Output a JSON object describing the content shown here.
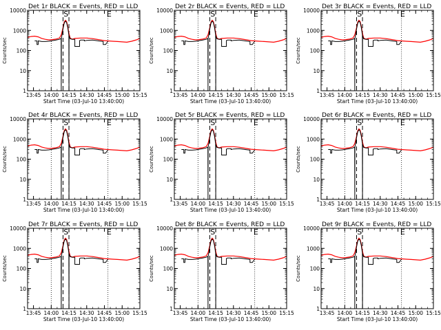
{
  "figure": {
    "background": "#ffffff",
    "axis_color": "#000000",
    "events_color": "#000000",
    "lld_color": "#ff0000"
  },
  "chart_data": {
    "type": "line",
    "yscale": "log",
    "ylim": [
      1,
      10000
    ],
    "y_ticks": [
      1,
      10,
      100,
      1000,
      10000
    ],
    "y_tick_labels": [
      "1",
      "10",
      "100",
      "1000",
      "10000"
    ],
    "ylabel": "Counts/sec",
    "xlabel": "Start Time (03-Jul-10 13:40:00)",
    "xlim_minutes": [
      0,
      95
    ],
    "x_ticks_minutes": [
      5,
      20,
      35,
      50,
      65,
      80,
      95
    ],
    "x_tick_labels": [
      "13:45",
      "14:00",
      "14:15",
      "14:30",
      "14:45",
      "15:00",
      "15:15"
    ],
    "dotted_vlines_minutes": [
      20,
      68
    ],
    "dashed_vlines_minutes": [
      30,
      35
    ],
    "markers": [
      {
        "text": "S",
        "x_minutes": 32.5
      },
      {
        "text": "E",
        "x_minutes": 69
      }
    ],
    "panel_titles": [
      "Det 1r BLACK = Events, RED = LLD",
      "Det 2r BLACK = Events, RED = LLD",
      "Det 3r BLACK = Events, RED = LLD",
      "Det 4r BLACK = Events, RED = LLD",
      "Det 5r BLACK = Events, RED = LLD",
      "Det 6r BLACK = Events, RED = LLD",
      "Det 7r BLACK = Events, RED = LLD",
      "Det 8r BLACK = Events, RED = LLD",
      "Det 9r BLACK = Events, RED = LLD"
    ],
    "series": [
      {
        "name": "LLD",
        "color": "#ff0000",
        "x_minutes": [
          0,
          3,
          6,
          9,
          12,
          15,
          18,
          21,
          24,
          27,
          28.5,
          30,
          31,
          32,
          33,
          34,
          35,
          36,
          37,
          38,
          40,
          45,
          50,
          55,
          60,
          65,
          68,
          72,
          76,
          80,
          84,
          88,
          92,
          95
        ],
        "values": [
          450,
          500,
          520,
          480,
          400,
          360,
          340,
          350,
          370,
          420,
          600,
          1400,
          2600,
          3200,
          2800,
          1600,
          700,
          420,
          380,
          370,
          400,
          420,
          420,
          390,
          350,
          310,
          300,
          290,
          280,
          270,
          260,
          290,
          340,
          400
        ]
      },
      {
        "name": "Events",
        "color": "#000000",
        "x_minutes": [
          6,
          8,
          8.01,
          9,
          9.01,
          12,
          15,
          18,
          21,
          24,
          27,
          28.4,
          28.5,
          28.6,
          30,
          31,
          32,
          33,
          34,
          34.9,
          35,
          35.1,
          36,
          38,
          40,
          40.01,
          44,
          44.01,
          45,
          48,
          48.01,
          50,
          55,
          60,
          64,
          64.01,
          66,
          68
        ],
        "values": [
          300,
          300,
          200,
          200,
          300,
          280,
          280,
          290,
          310,
          330,
          360,
          400,
          1,
          400,
          1200,
          2300,
          2900,
          2500,
          1400,
          600,
          1,
          550,
          380,
          360,
          360,
          160,
          160,
          310,
          330,
          330,
          300,
          320,
          330,
          300,
          280,
          200,
          200,
          290
        ]
      }
    ]
  }
}
